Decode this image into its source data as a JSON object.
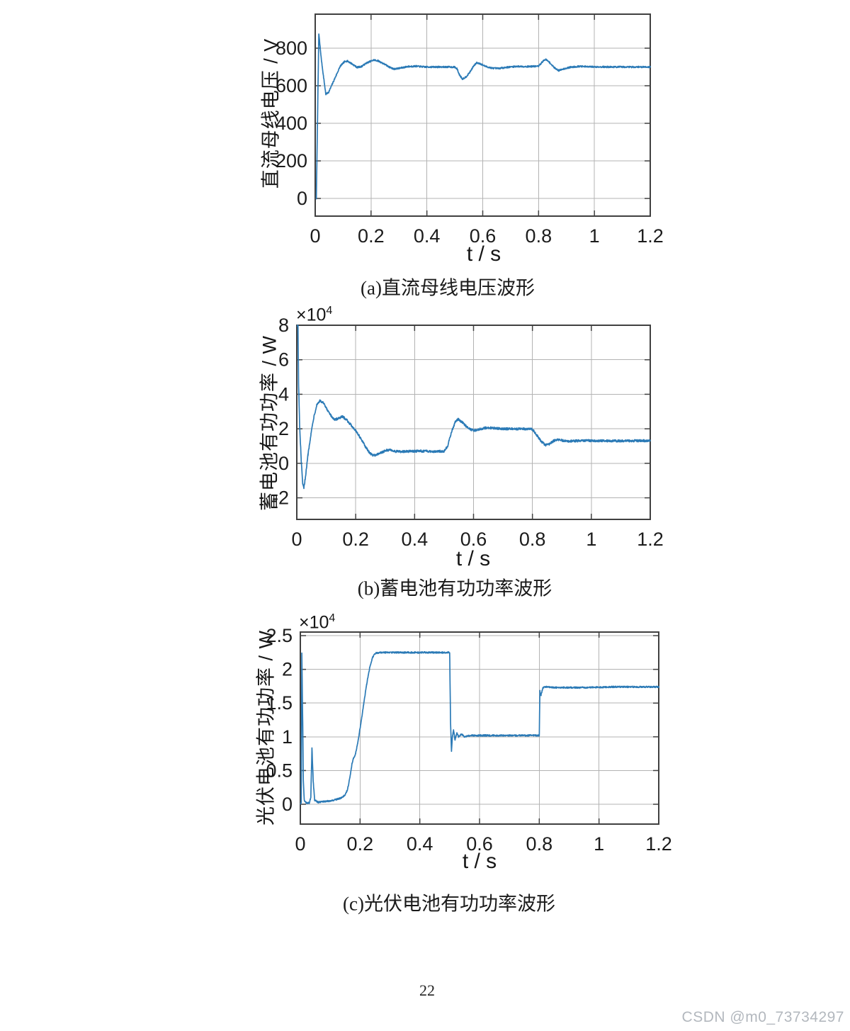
{
  "page": {
    "number": "22",
    "watermark": "CSDN @m0_73734297"
  },
  "colors": {
    "line": "#2b7ab6",
    "grid": "#b3b3b3",
    "axis": "#404040",
    "tick_text": "#1c1c1c",
    "watermark": "#b3b8be"
  },
  "chart_data": [
    {
      "id": "a",
      "type": "line",
      "caption": "(a)直流母线电压波形",
      "ylabel": "直流母线电压 / V",
      "xlabel": "t / s",
      "exp_prefix": "",
      "exp_power": "",
      "grid": true,
      "legend": "none",
      "xlim": [
        0,
        1.2
      ],
      "ylim": [
        -94,
        981
      ],
      "xtick_values": [
        0,
        0.2,
        0.4,
        0.6,
        0.8,
        1,
        1.2
      ],
      "xtick_labels": [
        "0",
        "0.2",
        "0.4",
        "0.6",
        "0.8",
        "1",
        "1.2"
      ],
      "ytick_values": [
        0,
        200,
        400,
        600,
        800
      ],
      "ytick_labels": [
        "0",
        "200",
        "400",
        "600",
        "800"
      ],
      "noise": 4,
      "series": [
        {
          "name": "dc-bus-voltage",
          "points": [
            [
              0.004,
              0
            ],
            [
              0.007,
              300
            ],
            [
              0.013,
              875
            ],
            [
              0.022,
              740
            ],
            [
              0.03,
              645
            ],
            [
              0.038,
              555
            ],
            [
              0.048,
              565
            ],
            [
              0.06,
              605
            ],
            [
              0.075,
              655
            ],
            [
              0.09,
              705
            ],
            [
              0.105,
              728
            ],
            [
              0.115,
              732
            ],
            [
              0.13,
              718
            ],
            [
              0.15,
              698
            ],
            [
              0.165,
              702
            ],
            [
              0.185,
              722
            ],
            [
              0.21,
              737
            ],
            [
              0.225,
              733
            ],
            [
              0.248,
              715
            ],
            [
              0.265,
              700
            ],
            [
              0.282,
              689
            ],
            [
              0.305,
              694
            ],
            [
              0.33,
              702
            ],
            [
              0.36,
              704
            ],
            [
              0.395,
              700
            ],
            [
              0.44,
              700
            ],
            [
              0.48,
              700
            ],
            [
              0.5,
              699
            ],
            [
              0.508,
              690
            ],
            [
              0.516,
              660
            ],
            [
              0.527,
              636
            ],
            [
              0.54,
              647
            ],
            [
              0.553,
              670
            ],
            [
              0.566,
              702
            ],
            [
              0.578,
              722
            ],
            [
              0.59,
              718
            ],
            [
              0.61,
              703
            ],
            [
              0.632,
              694
            ],
            [
              0.655,
              692
            ],
            [
              0.685,
              698
            ],
            [
              0.72,
              703
            ],
            [
              0.76,
              702
            ],
            [
              0.8,
              704
            ],
            [
              0.814,
              728
            ],
            [
              0.825,
              741
            ],
            [
              0.838,
              726
            ],
            [
              0.855,
              698
            ],
            [
              0.872,
              681
            ],
            [
              0.89,
              690
            ],
            [
              0.915,
              699
            ],
            [
              0.945,
              703
            ],
            [
              0.98,
              701
            ],
            [
              1.05,
              700
            ],
            [
              1.12,
              700
            ],
            [
              1.2,
              700
            ]
          ]
        }
      ]
    },
    {
      "id": "b",
      "type": "line",
      "caption": "(b)蓄电池有功功率波形",
      "ylabel": "蓄电池有功功率 / W",
      "xlabel": "t / s",
      "exp_prefix": "×10",
      "exp_power": "4",
      "grid": true,
      "legend": "none",
      "xlim": [
        0,
        1.2
      ],
      "ylim": [
        -3.25,
        8
      ],
      "xtick_values": [
        0,
        0.2,
        0.4,
        0.6,
        0.8,
        1,
        1.2
      ],
      "xtick_labels": [
        "0",
        "0.2",
        "0.4",
        "0.6",
        "0.8",
        "1",
        "1.2"
      ],
      "ytick_values": [
        -2,
        0,
        2,
        4,
        6,
        8
      ],
      "ytick_labels": [
        "-2",
        "0",
        "2",
        "4",
        "6",
        "8"
      ],
      "noise": 0.065,
      "series": [
        {
          "name": "battery-active-power",
          "points": [
            [
              0.002,
              8
            ],
            [
              0.004,
              8
            ],
            [
              0.006,
              4.6
            ],
            [
              0.01,
              2.0
            ],
            [
              0.015,
              0.2
            ],
            [
              0.02,
              -1.2
            ],
            [
              0.024,
              -1.45
            ],
            [
              0.03,
              -0.7
            ],
            [
              0.038,
              0.5
            ],
            [
              0.048,
              1.7
            ],
            [
              0.058,
              2.7
            ],
            [
              0.068,
              3.4
            ],
            [
              0.078,
              3.62
            ],
            [
              0.09,
              3.5
            ],
            [
              0.103,
              3.1
            ],
            [
              0.118,
              2.7
            ],
            [
              0.13,
              2.52
            ],
            [
              0.142,
              2.62
            ],
            [
              0.155,
              2.7
            ],
            [
              0.168,
              2.55
            ],
            [
              0.185,
              2.2
            ],
            [
              0.2,
              1.9
            ],
            [
              0.215,
              1.5
            ],
            [
              0.23,
              1.05
            ],
            [
              0.245,
              0.65
            ],
            [
              0.258,
              0.46
            ],
            [
              0.272,
              0.5
            ],
            [
              0.29,
              0.65
            ],
            [
              0.305,
              0.75
            ],
            [
              0.318,
              0.78
            ],
            [
              0.332,
              0.7
            ],
            [
              0.355,
              0.67
            ],
            [
              0.385,
              0.7
            ],
            [
              0.42,
              0.71
            ],
            [
              0.46,
              0.69
            ],
            [
              0.5,
              0.7
            ],
            [
              0.512,
              1.0
            ],
            [
              0.525,
              1.8
            ],
            [
              0.538,
              2.4
            ],
            [
              0.548,
              2.55
            ],
            [
              0.56,
              2.4
            ],
            [
              0.575,
              2.15
            ],
            [
              0.592,
              1.95
            ],
            [
              0.605,
              1.9
            ],
            [
              0.625,
              2.0
            ],
            [
              0.645,
              2.06
            ],
            [
              0.67,
              2.04
            ],
            [
              0.7,
              2.0
            ],
            [
              0.74,
              2.0
            ],
            [
              0.78,
              2.0
            ],
            [
              0.8,
              1.97
            ],
            [
              0.812,
              1.7
            ],
            [
              0.828,
              1.3
            ],
            [
              0.845,
              1.05
            ],
            [
              0.858,
              1.12
            ],
            [
              0.872,
              1.3
            ],
            [
              0.885,
              1.38
            ],
            [
              0.9,
              1.33
            ],
            [
              0.92,
              1.27
            ],
            [
              0.945,
              1.3
            ],
            [
              0.98,
              1.31
            ],
            [
              1.05,
              1.3
            ],
            [
              1.12,
              1.3
            ],
            [
              1.2,
              1.31
            ]
          ]
        }
      ]
    },
    {
      "id": "c",
      "type": "line",
      "caption": "(c)光伏电池有功功率波形",
      "ylabel": "光伏电池有功功率 / W",
      "xlabel": "t / s",
      "exp_prefix": "×10",
      "exp_power": "4",
      "grid": true,
      "legend": "none",
      "xlim": [
        0,
        1.2
      ],
      "ylim": [
        -0.294,
        2.553
      ],
      "xtick_values": [
        0,
        0.2,
        0.4,
        0.6,
        0.8,
        1,
        1.2
      ],
      "xtick_labels": [
        "0",
        "0.2",
        "0.4",
        "0.6",
        "0.8",
        "1",
        "1.2"
      ],
      "ytick_values": [
        0,
        0.5,
        1,
        1.5,
        2,
        2.5
      ],
      "ytick_labels": [
        "0",
        "0.5",
        "1",
        "1.5",
        "2",
        "2.5"
      ],
      "noise": 0.011,
      "series": [
        {
          "name": "pv-active-power",
          "points": [
            [
              0.001,
              0.01
            ],
            [
              0.003,
              0.02
            ],
            [
              0.005,
              2.25
            ],
            [
              0.008,
              1.2
            ],
            [
              0.01,
              0.35
            ],
            [
              0.013,
              0.06
            ],
            [
              0.02,
              0.02
            ],
            [
              0.03,
              0.02
            ],
            [
              0.035,
              0.1
            ],
            [
              0.039,
              0.83
            ],
            [
              0.043,
              0.35
            ],
            [
              0.048,
              0.06
            ],
            [
              0.06,
              0.03
            ],
            [
              0.08,
              0.04
            ],
            [
              0.1,
              0.05
            ],
            [
              0.12,
              0.07
            ],
            [
              0.135,
              0.09
            ],
            [
              0.15,
              0.14
            ],
            [
              0.158,
              0.22
            ],
            [
              0.166,
              0.4
            ],
            [
              0.173,
              0.6
            ],
            [
              0.178,
              0.68
            ],
            [
              0.185,
              0.75
            ],
            [
              0.193,
              0.93
            ],
            [
              0.202,
              1.18
            ],
            [
              0.212,
              1.48
            ],
            [
              0.222,
              1.78
            ],
            [
              0.232,
              2.02
            ],
            [
              0.242,
              2.18
            ],
            [
              0.252,
              2.24
            ],
            [
              0.27,
              2.25
            ],
            [
              0.32,
              2.25
            ],
            [
              0.38,
              2.25
            ],
            [
              0.44,
              2.25
            ],
            [
              0.5,
              2.25
            ],
            [
              0.503,
              1.2
            ],
            [
              0.506,
              0.78
            ],
            [
              0.509,
              1.0
            ],
            [
              0.513,
              1.1
            ],
            [
              0.518,
              0.95
            ],
            [
              0.524,
              1.06
            ],
            [
              0.53,
              1.0
            ],
            [
              0.54,
              1.04
            ],
            [
              0.55,
              1.0
            ],
            [
              0.57,
              1.02
            ],
            [
              0.62,
              1.02
            ],
            [
              0.68,
              1.02
            ],
            [
              0.74,
              1.02
            ],
            [
              0.8,
              1.02
            ],
            [
              0.802,
              1.68
            ],
            [
              0.806,
              1.62
            ],
            [
              0.812,
              1.73
            ],
            [
              0.825,
              1.74
            ],
            [
              0.85,
              1.73
            ],
            [
              0.9,
              1.73
            ],
            [
              0.96,
              1.73
            ],
            [
              1.05,
              1.74
            ],
            [
              1.13,
              1.74
            ],
            [
              1.2,
              1.74
            ]
          ]
        }
      ]
    }
  ]
}
